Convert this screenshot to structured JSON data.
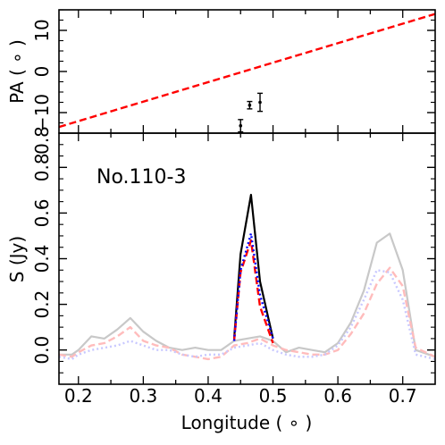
{
  "chart_data": [
    {
      "type": "scatter",
      "panel": "top",
      "ylabel": "PA ( ∘ )",
      "xlim": [
        0.17,
        0.75
      ],
      "ylim": [
        -15,
        15
      ],
      "yticks": [
        10,
        0,
        -10
      ],
      "tick_labels": [
        "10",
        "0",
        "−10"
      ],
      "dashed_line": {
        "color": "#ff0000",
        "x": [
          0.17,
          0.75
        ],
        "y": [
          -13.5,
          14
        ]
      },
      "points": [
        {
          "x": 0.45,
          "y": -13.2,
          "yerr": 1.5
        },
        {
          "x": 0.464,
          "y": -8.2,
          "yerr": 0.9
        },
        {
          "x": 0.48,
          "y": -7.5,
          "yerr": 2.2
        }
      ],
      "marker_color": "#000000"
    },
    {
      "type": "line",
      "panel": "bottom",
      "annotation": "No.110-3",
      "xlabel": "Longitude ( ∘ )",
      "ylabel": "S (Jy)",
      "xlim": [
        0.17,
        0.75
      ],
      "ylim": [
        -0.15,
        0.95
      ],
      "x_ticks": [
        0.2,
        0.3,
        0.4,
        0.5,
        0.6,
        0.7
      ],
      "x_tick_labels": [
        "0.2",
        "0.3",
        "0.4",
        "0.5",
        "0.6",
        "0.7"
      ],
      "top_y_tick_label": "0.8",
      "y_ticks": [
        0.0,
        0.2,
        0.4,
        0.6,
        0.8
      ],
      "y_tick_labels": [
        "0.0",
        "0.2",
        "0.4",
        "0.6",
        "0.8"
      ],
      "series": [
        {
          "style": "solid",
          "color": "#c8c8c8",
          "x": [
            0.17,
            0.19,
            0.2,
            0.22,
            0.24,
            0.26,
            0.28,
            0.3,
            0.32,
            0.34,
            0.36,
            0.38,
            0.4,
            0.42,
            0.44,
            0.46,
            0.48,
            0.5,
            0.52,
            0.54,
            0.56,
            0.58,
            0.6,
            0.62,
            0.64,
            0.66,
            0.68,
            0.7,
            0.72,
            0.75
          ],
          "y": [
            -0.02,
            -0.02,
            0.0,
            0.06,
            0.05,
            0.09,
            0.14,
            0.08,
            0.04,
            0.01,
            0.0,
            0.01,
            0.0,
            0.0,
            0.04,
            0.05,
            0.06,
            0.04,
            -0.01,
            0.01,
            0.0,
            -0.01,
            0.03,
            0.12,
            0.26,
            0.47,
            0.51,
            0.35,
            0.0,
            -0.03
          ]
        },
        {
          "style": "dashed",
          "color": "#ffbcbc",
          "x": [
            0.17,
            0.19,
            0.2,
            0.22,
            0.24,
            0.26,
            0.28,
            0.3,
            0.32,
            0.34,
            0.36,
            0.38,
            0.4,
            0.42,
            0.44,
            0.46,
            0.48,
            0.5,
            0.52,
            0.54,
            0.56,
            0.58,
            0.6,
            0.62,
            0.64,
            0.66,
            0.68,
            0.7,
            0.72,
            0.75
          ],
          "y": [
            -0.02,
            -0.03,
            -0.01,
            0.02,
            0.03,
            0.06,
            0.1,
            0.04,
            0.02,
            0.01,
            -0.02,
            -0.03,
            -0.04,
            -0.03,
            0.02,
            0.03,
            0.05,
            0.02,
            0.0,
            -0.01,
            -0.02,
            -0.02,
            0.0,
            0.07,
            0.16,
            0.29,
            0.36,
            0.28,
            0.01,
            -0.03
          ]
        },
        {
          "style": "dotted",
          "color": "#c8c8ff",
          "x": [
            0.17,
            0.19,
            0.2,
            0.22,
            0.24,
            0.26,
            0.28,
            0.3,
            0.32,
            0.34,
            0.36,
            0.38,
            0.4,
            0.42,
            0.44,
            0.46,
            0.48,
            0.5,
            0.52,
            0.54,
            0.56,
            0.58,
            0.6,
            0.62,
            0.64,
            0.66,
            0.68,
            0.7,
            0.72,
            0.75
          ],
          "y": [
            -0.03,
            -0.04,
            -0.02,
            0.0,
            0.01,
            0.02,
            0.04,
            0.02,
            0.0,
            0.0,
            -0.02,
            -0.03,
            -0.02,
            -0.02,
            0.01,
            0.02,
            0.03,
            0.0,
            -0.02,
            -0.03,
            -0.03,
            -0.02,
            0.02,
            0.1,
            0.22,
            0.35,
            0.34,
            0.22,
            -0.02,
            -0.04
          ]
        },
        {
          "style": "solid",
          "color": "#000000",
          "x": [
            0.44,
            0.45,
            0.466,
            0.48,
            0.5
          ],
          "y": [
            0.05,
            0.42,
            0.68,
            0.3,
            0.05
          ]
        },
        {
          "style": "dashed",
          "color": "#ff0000",
          "x": [
            0.44,
            0.45,
            0.466,
            0.48,
            0.5
          ],
          "y": [
            0.04,
            0.34,
            0.48,
            0.19,
            0.03
          ]
        },
        {
          "style": "dotted",
          "color": "#0000ff",
          "x": [
            0.44,
            0.45,
            0.466,
            0.48,
            0.5
          ],
          "y": [
            0.04,
            0.35,
            0.51,
            0.24,
            0.05
          ]
        }
      ]
    }
  ]
}
